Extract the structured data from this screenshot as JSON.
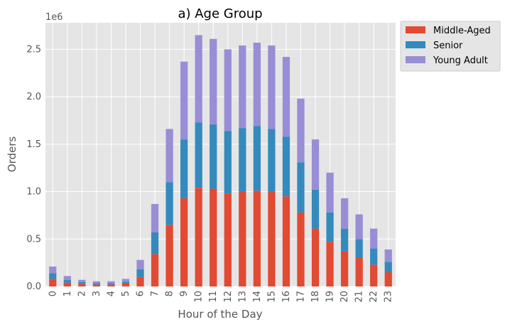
{
  "chart_data": {
    "type": "bar",
    "stacked": true,
    "title": "a) Age Group",
    "xlabel": "Hour of the Day",
    "ylabel": "Orders",
    "y_offset_text": "1e6",
    "ylim": [
      0,
      2.78
    ],
    "yticks": [
      "0.0",
      "0.5",
      "1.0",
      "1.5",
      "2.0",
      "2.5"
    ],
    "ytick_values": [
      0,
      0.5,
      1.0,
      1.5,
      2.0,
      2.5
    ],
    "categories": [
      "0",
      "1",
      "2",
      "3",
      "4",
      "5",
      "6",
      "7",
      "8",
      "9",
      "10",
      "11",
      "12",
      "13",
      "14",
      "15",
      "16",
      "17",
      "18",
      "19",
      "20",
      "21",
      "22",
      "23"
    ],
    "series": [
      {
        "name": "Middle-Aged",
        "color": "#E24A33",
        "values": [
          0.08,
          0.04,
          0.025,
          0.02,
          0.02,
          0.03,
          0.1,
          0.34,
          0.65,
          0.93,
          1.04,
          1.03,
          0.98,
          1.0,
          1.01,
          1.0,
          0.95,
          0.78,
          0.61,
          0.47,
          0.37,
          0.3,
          0.23,
          0.15
        ]
      },
      {
        "name": "Senior",
        "color": "#348ABD",
        "values": [
          0.06,
          0.03,
          0.02,
          0.015,
          0.015,
          0.02,
          0.08,
          0.23,
          0.45,
          0.62,
          0.69,
          0.68,
          0.66,
          0.67,
          0.68,
          0.66,
          0.63,
          0.53,
          0.41,
          0.31,
          0.24,
          0.2,
          0.17,
          0.11
        ]
      },
      {
        "name": "Young Adult",
        "color": "#988ED5",
        "values": [
          0.07,
          0.04,
          0.025,
          0.02,
          0.02,
          0.03,
          0.1,
          0.3,
          0.56,
          0.82,
          0.92,
          0.9,
          0.86,
          0.87,
          0.88,
          0.88,
          0.84,
          0.67,
          0.53,
          0.42,
          0.32,
          0.26,
          0.21,
          0.13
        ]
      }
    ],
    "legend_position": "outside-top-right",
    "grid": true,
    "background": "#E5E5E5"
  }
}
